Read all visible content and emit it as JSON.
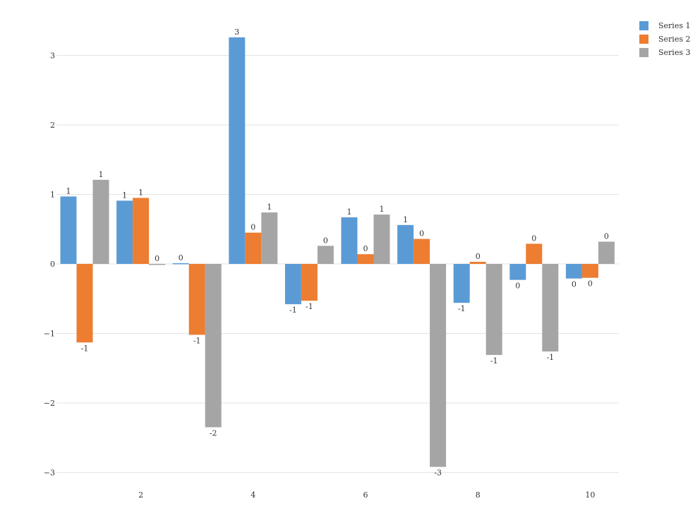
{
  "chart_data": {
    "type": "bar",
    "x": [
      1,
      2,
      3,
      4,
      5,
      6,
      7,
      8,
      9,
      10
    ],
    "xticks": [
      2,
      4,
      6,
      8,
      10
    ],
    "xtick_labels": [
      "2",
      "4",
      "6",
      "8",
      "10"
    ],
    "yticks": [
      -3,
      -2,
      -1,
      0,
      1,
      2,
      3
    ],
    "ytick_labels": [
      "−3",
      "−2",
      "−1",
      "0",
      "1",
      "2",
      "3"
    ],
    "ylim": [
      -3.3,
      3.6
    ],
    "xlim": [
      0.5,
      10.5
    ],
    "grid": "horizontal",
    "legend_position": "top-right",
    "series": [
      {
        "name": "Series 1",
        "color": "#5b9bd5",
        "values": [
          0.97,
          0.91,
          0.01,
          3.26,
          -0.58,
          0.67,
          0.56,
          -0.56,
          -0.23,
          -0.21
        ],
        "labels": [
          "1",
          "1",
          "0",
          "3",
          "-1",
          "1",
          "1",
          "-1",
          "0",
          "0"
        ]
      },
      {
        "name": "Series 2",
        "color": "#ed7d31",
        "values": [
          -1.13,
          0.95,
          -1.02,
          0.45,
          -0.53,
          0.14,
          0.36,
          0.03,
          0.29,
          -0.2
        ],
        "labels": [
          "-1",
          "1",
          "-1",
          "0",
          "-1",
          "0",
          "0",
          "0",
          "0",
          "0"
        ]
      },
      {
        "name": "Series 3",
        "color": "#a5a5a5",
        "values": [
          1.21,
          0.0,
          -2.35,
          0.74,
          0.26,
          0.71,
          -2.92,
          -1.31,
          -1.26,
          0.32
        ],
        "labels": [
          "1",
          "0",
          "-2",
          "1",
          "0",
          "1",
          "-3",
          "-1",
          "-1",
          "0"
        ]
      }
    ]
  }
}
